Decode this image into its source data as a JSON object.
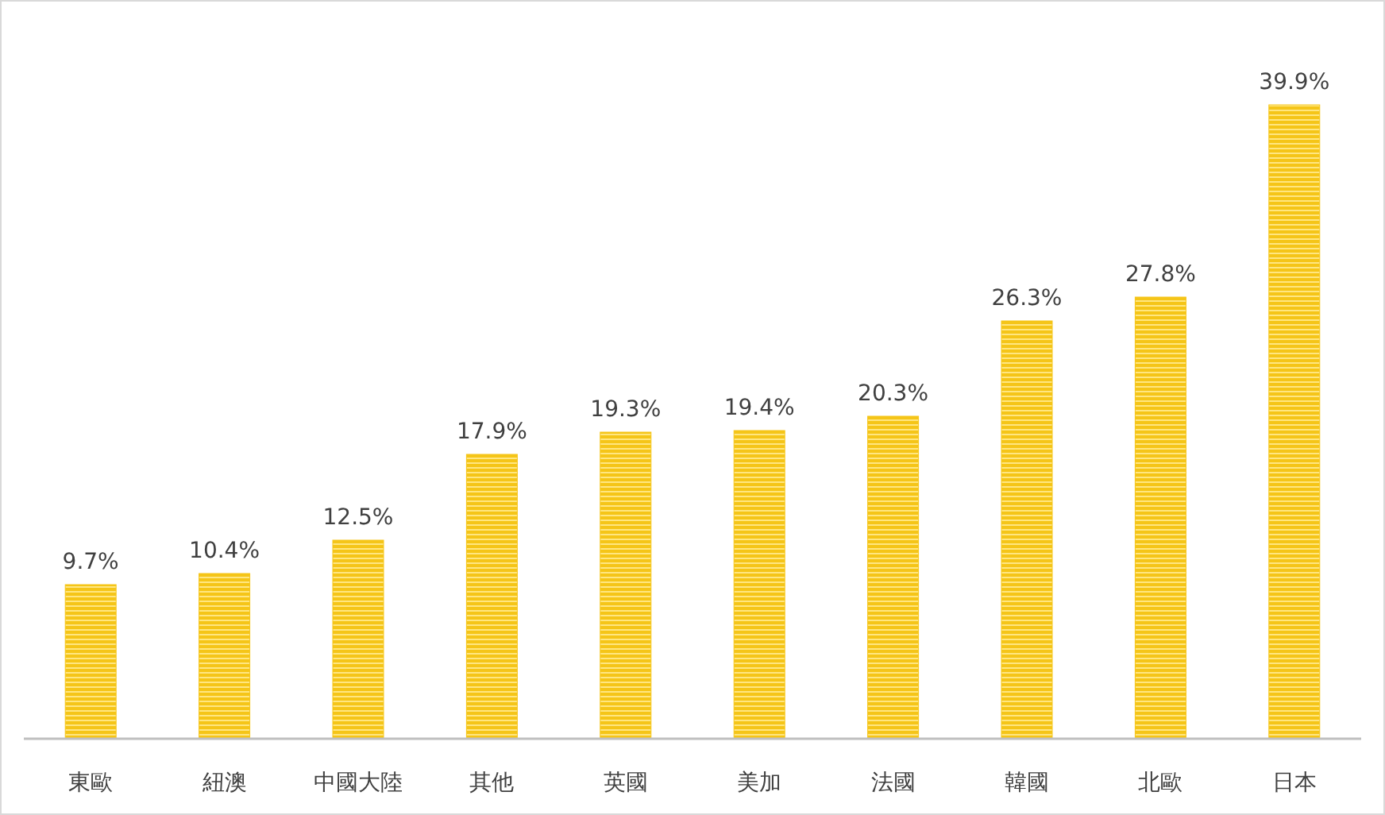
{
  "chart_data": {
    "type": "bar",
    "categories": [
      "東歐",
      "紐澳",
      "中國大陸",
      "其他",
      "英國",
      "美加",
      "法國",
      "韓國",
      "北歐",
      "日本"
    ],
    "values": [
      9.7,
      10.4,
      12.5,
      17.9,
      19.3,
      19.4,
      20.3,
      26.3,
      27.8,
      39.9
    ],
    "value_labels": [
      "9.7%",
      "10.4%",
      "12.5%",
      "17.9%",
      "19.3%",
      "19.4%",
      "20.3%",
      "26.3%",
      "27.8%",
      "39.9%"
    ],
    "color": "#f5c518"
  }
}
